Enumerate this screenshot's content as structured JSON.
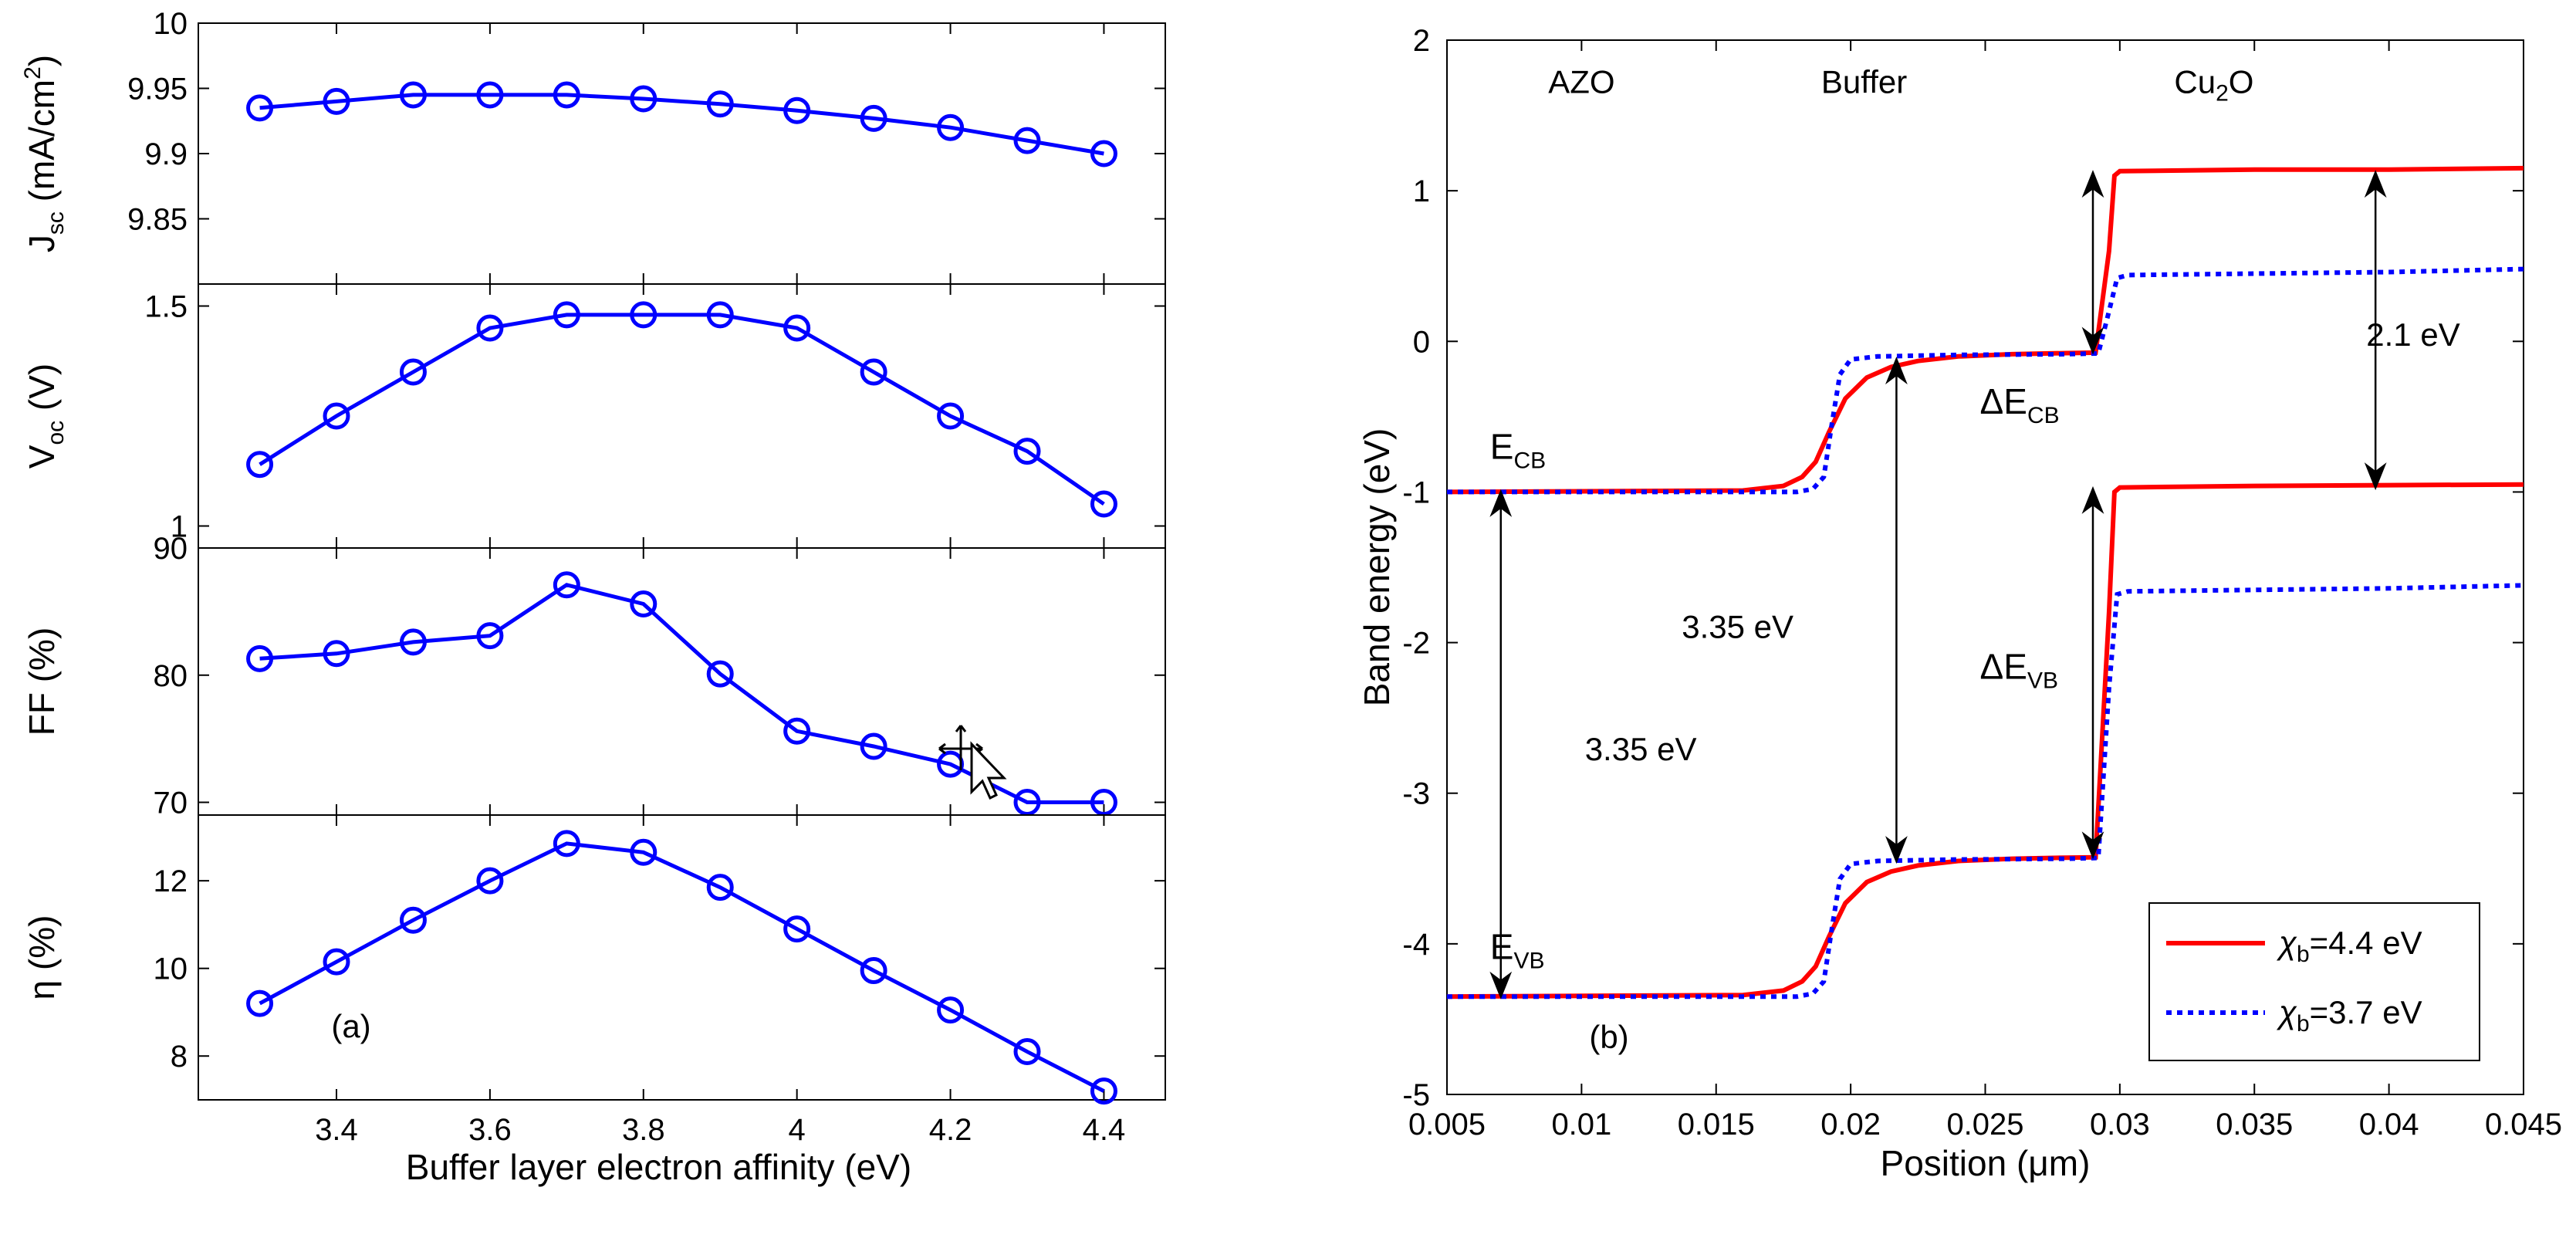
{
  "chart_data": [
    {
      "panel": "a",
      "type": "line",
      "annotation": "(a)",
      "xlabel": "Buffer layer electron affinity (eV)",
      "x": [
        3.3,
        3.4,
        3.5,
        3.6,
        3.7,
        3.8,
        3.9,
        4.0,
        4.1,
        4.2,
        4.3,
        4.4
      ],
      "xlim": [
        3.22,
        4.48
      ],
      "xticks": [
        3.4,
        3.6,
        3.8,
        4.0,
        4.2,
        4.4
      ],
      "xtick_labels": [
        "3.4",
        "3.6",
        "3.8",
        "4",
        "4.2",
        "4.4"
      ],
      "color": "#0000ff",
      "marker": "circle",
      "grid": false,
      "subplots": [
        {
          "ylabel": {
            "main": "J",
            "sub": "sc",
            "rest": " (mA/cm",
            "sup": "2",
            "close": ")"
          },
          "ylim": [
            9.8,
            10.0
          ],
          "yticks": [
            9.85,
            9.9,
            9.95,
            10
          ],
          "ytick_labels": [
            "9.85",
            "9.9",
            "9.95",
            "10"
          ],
          "values": [
            9.935,
            9.94,
            9.945,
            9.945,
            9.945,
            9.942,
            9.938,
            9.933,
            9.927,
            9.92,
            9.91,
            9.9
          ]
        },
        {
          "ylabel": {
            "main": "V",
            "sub": "oc",
            "rest": " (V)"
          },
          "ylim": [
            0.95,
            1.55
          ],
          "yticks": [
            1,
            1.5
          ],
          "ytick_labels": [
            "1",
            "1.5"
          ],
          "values": [
            1.14,
            1.25,
            1.35,
            1.45,
            1.48,
            1.48,
            1.48,
            1.45,
            1.35,
            1.25,
            1.17,
            1.05
          ]
        },
        {
          "ylabel": {
            "main": "FF (%)"
          },
          "ylim": [
            69,
            90
          ],
          "yticks": [
            70,
            80,
            90
          ],
          "ytick_labels": [
            "70",
            "80",
            "90"
          ],
          "values": [
            81.3,
            81.7,
            82.6,
            83.1,
            87.1,
            85.6,
            80.1,
            75.6,
            74.4,
            73.0,
            70.0,
            70.0
          ]
        },
        {
          "ylabel": {
            "main": "η (%)"
          },
          "ylim": [
            7,
            13.5
          ],
          "yticks": [
            8,
            10,
            12
          ],
          "ytick_labels": [
            "8",
            "10",
            "12"
          ],
          "values": [
            9.2,
            10.15,
            11.1,
            12.0,
            12.85,
            12.65,
            11.85,
            10.9,
            9.95,
            9.05,
            8.1,
            7.2
          ]
        }
      ]
    },
    {
      "panel": "b",
      "type": "line",
      "annotation": "(b)",
      "xlabel": "Position (μm)",
      "ylabel": "Band energy (eV)",
      "xlim": [
        0.005,
        0.045
      ],
      "ylim": [
        -5,
        2
      ],
      "xticks": [
        0.005,
        0.01,
        0.015,
        0.02,
        0.025,
        0.03,
        0.035,
        0.04,
        0.045
      ],
      "xtick_labels": [
        "0.005",
        "0.01",
        "0.015",
        "0.02",
        "0.025",
        "0.03",
        "0.035",
        "0.04",
        "0.045"
      ],
      "yticks": [
        -5,
        -4,
        -3,
        -2,
        -1,
        0,
        1,
        2
      ],
      "ytick_labels": [
        "-5",
        "-4",
        "-3",
        "-2",
        "-1",
        "0",
        "1",
        "2"
      ],
      "grid": false,
      "legend_position": "bottom-right",
      "region_labels": [
        {
          "text": "AZO",
          "x": 0.01,
          "y": 1.65
        },
        {
          "text": "Buffer",
          "x": 0.0205,
          "y": 1.65
        },
        {
          "text": "Cu",
          "sub": "2",
          "rest": "O",
          "x": 0.0335,
          "y": 1.65
        }
      ],
      "band_labels": [
        {
          "main": "E",
          "sub": "CB",
          "x": 0.0066,
          "y": -0.78
        },
        {
          "main": "E",
          "sub": "VB",
          "x": 0.0066,
          "y": -4.1
        },
        {
          "main": "ΔE",
          "sub": "CB",
          "x": 0.0248,
          "y": -0.48
        },
        {
          "main": "ΔE",
          "sub": "VB",
          "x": 0.0248,
          "y": -2.24
        }
      ],
      "annotations": [
        {
          "text": "3.35 eV",
          "x": 0.0122,
          "y": -2.78
        },
        {
          "text": "3.35 eV",
          "x": 0.0158,
          "y": -1.97
        },
        {
          "text": "2.1 eV",
          "x": 0.0409,
          "y": -0.03
        }
      ],
      "arrows": [
        {
          "x": 0.007,
          "y1": -1.0,
          "y2": -4.35
        },
        {
          "x": 0.0217,
          "y1": -0.12,
          "y2": -3.45
        },
        {
          "x": 0.029,
          "y1": 1.12,
          "y2": -0.07
        },
        {
          "x": 0.029,
          "y1": -0.98,
          "y2": -3.42
        },
        {
          "x": 0.0395,
          "y1": 1.12,
          "y2": -0.97
        }
      ],
      "series": [
        {
          "name": "χb=4.4 eV",
          "legend": {
            "main": "χ",
            "sub": "b",
            "rest": "=4.4 eV"
          },
          "color": "#ff0000",
          "style": "solid",
          "lines": [
            {
              "x": [
                0.005,
                0.016,
                0.0175,
                0.0182,
                0.0187,
                0.0192,
                0.0198,
                0.0206,
                0.0215,
                0.0225,
                0.024,
                0.026,
                0.028,
                0.0291,
                0.0296,
                0.0298,
                0.03,
                0.035,
                0.04,
                0.045
              ],
              "y": [
                -1.0,
                -0.99,
                -0.96,
                -0.9,
                -0.8,
                -0.6,
                -0.38,
                -0.24,
                -0.17,
                -0.13,
                -0.1,
                -0.085,
                -0.078,
                -0.075,
                0.6,
                1.1,
                1.13,
                1.14,
                1.14,
                1.15
              ]
            },
            {
              "x": [
                0.005,
                0.016,
                0.0175,
                0.0182,
                0.0187,
                0.0192,
                0.0198,
                0.0206,
                0.0215,
                0.0225,
                0.024,
                0.026,
                0.028,
                0.0291,
                0.0296,
                0.0298,
                0.03,
                0.035,
                0.04,
                0.045
              ],
              "y": [
                -4.35,
                -4.34,
                -4.31,
                -4.25,
                -4.15,
                -3.95,
                -3.73,
                -3.59,
                -3.52,
                -3.48,
                -3.45,
                -3.435,
                -3.428,
                -3.425,
                -1.8,
                -1.0,
                -0.97,
                -0.96,
                -0.955,
                -0.95
              ]
            }
          ]
        },
        {
          "name": "χb=3.7 eV",
          "legend": {
            "main": "χ",
            "sub": "b",
            "rest": "=3.7 eV"
          },
          "color": "#0000ff",
          "style": "dotted",
          "lines": [
            {
              "x": [
                0.005,
                0.018,
                0.0186,
                0.019,
                0.0193,
                0.0196,
                0.02,
                0.021,
                0.024,
                0.028,
                0.0292,
                0.0296,
                0.0299,
                0.0303,
                0.035,
                0.04,
                0.045
              ],
              "y": [
                -1.0,
                -1.0,
                -0.98,
                -0.9,
                -0.55,
                -0.22,
                -0.12,
                -0.1,
                -0.09,
                -0.085,
                -0.08,
                0.2,
                0.42,
                0.44,
                0.45,
                0.46,
                0.48
              ]
            },
            {
              "x": [
                0.005,
                0.018,
                0.0186,
                0.019,
                0.0193,
                0.0196,
                0.02,
                0.021,
                0.024,
                0.028,
                0.0292,
                0.0296,
                0.0299,
                0.0303,
                0.035,
                0.04,
                0.045
              ],
              "y": [
                -4.35,
                -4.35,
                -4.33,
                -4.25,
                -3.9,
                -3.57,
                -3.47,
                -3.45,
                -3.44,
                -3.435,
                -3.43,
                -2.3,
                -1.68,
                -1.66,
                -1.65,
                -1.64,
                -1.62
              ]
            }
          ]
        }
      ]
    }
  ]
}
